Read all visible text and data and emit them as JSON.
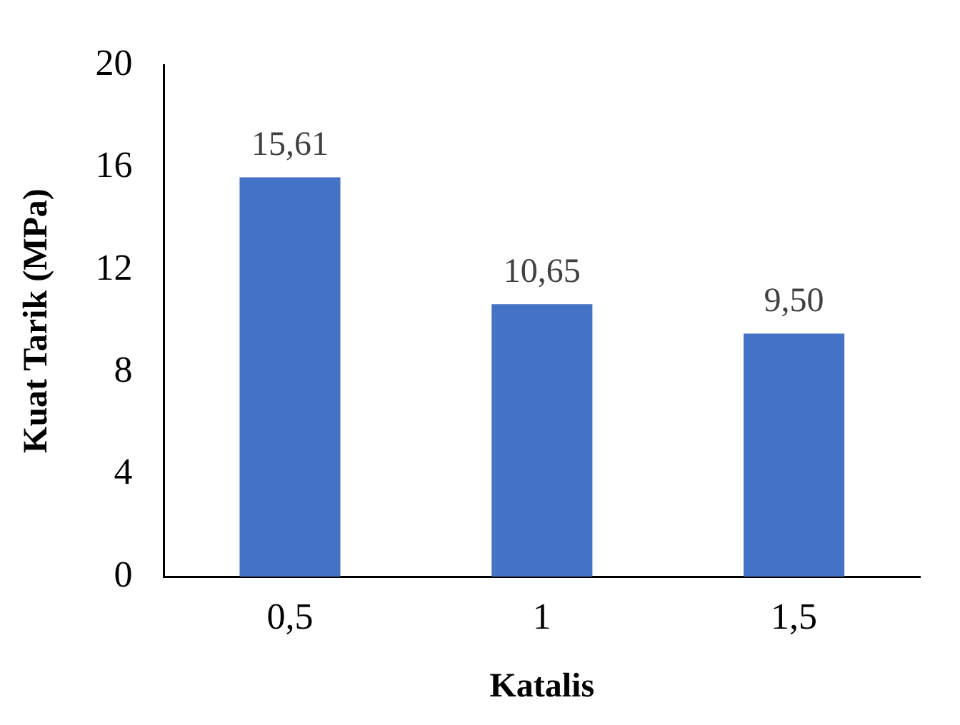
{
  "chart_data": {
    "type": "bar",
    "xlabel": "Katalis",
    "ylabel": "Kuat Tarik (MPa)",
    "categories": [
      "0,5",
      "1",
      "1,5"
    ],
    "values": [
      15.61,
      10.65,
      9.5
    ],
    "value_labels": [
      "15,61",
      "10,65",
      "9,50"
    ],
    "color": "#4472c4",
    "ylim": [
      0,
      20
    ],
    "yticks": [
      0,
      4,
      8,
      12,
      16,
      20
    ],
    "grid": false,
    "legend": false
  }
}
